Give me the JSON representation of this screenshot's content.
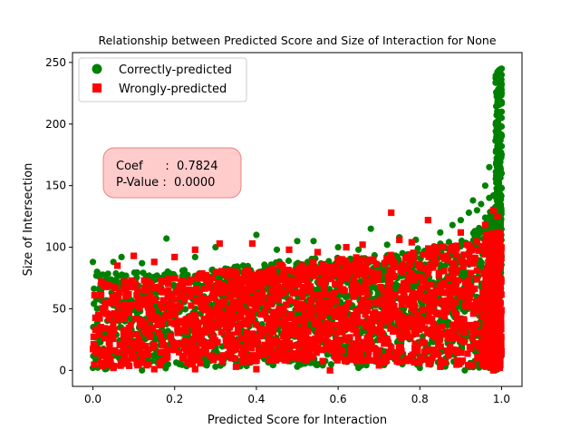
{
  "chart_data": {
    "type": "scatter",
    "title": "Relationship between Predicted Score and Size of Interaction for None",
    "xlabel": "Predicted Score for Interaction",
    "ylabel": "Size of Intersection",
    "xlim": [
      -0.05,
      1.05
    ],
    "ylim": [
      -13,
      258
    ],
    "x_ticks": [
      0.0,
      0.2,
      0.4,
      0.6,
      0.8,
      1.0
    ],
    "x_tick_labels": [
      "0.0",
      "0.2",
      "0.4",
      "0.6",
      "0.8",
      "1.0"
    ],
    "y_ticks": [
      0,
      50,
      100,
      150,
      200,
      250
    ],
    "y_tick_labels": [
      "0",
      "50",
      "100",
      "150",
      "200",
      "250"
    ],
    "grid": false,
    "legend_position": "top-left",
    "series": [
      {
        "name": "Correctly-predicted",
        "marker": "circle",
        "color": "#008000",
        "points": [
          [
            0.0,
            88
          ],
          [
            0.01,
            80
          ],
          [
            0.02,
            65
          ],
          [
            0.05,
            88
          ],
          [
            0.07,
            92
          ],
          [
            0.12,
            87
          ],
          [
            0.18,
            107
          ],
          [
            0.25,
            92
          ],
          [
            0.3,
            100
          ],
          [
            0.4,
            110
          ],
          [
            0.45,
            98
          ],
          [
            0.5,
            105
          ],
          [
            0.54,
            105
          ],
          [
            0.6,
            100
          ],
          [
            0.65,
            98
          ],
          [
            0.68,
            115
          ],
          [
            0.72,
            102
          ],
          [
            0.75,
            108
          ],
          [
            0.79,
            106
          ],
          [
            0.85,
            112
          ],
          [
            0.88,
            118
          ],
          [
            0.9,
            122
          ],
          [
            0.92,
            128
          ],
          [
            0.93,
            138
          ],
          [
            0.95,
            135
          ],
          [
            0.96,
            150
          ],
          [
            0.97,
            165
          ],
          [
            0.99,
            182
          ],
          [
            1.0,
            245
          ],
          [
            1.0,
            240
          ],
          [
            1.0,
            232
          ],
          [
            1.0,
            225
          ],
          [
            1.0,
            218
          ],
          [
            1.0,
            210
          ],
          [
            1.0,
            205
          ],
          [
            1.0,
            198
          ],
          [
            1.0,
            190
          ],
          [
            1.0,
            182
          ],
          [
            1.0,
            175
          ],
          [
            0.99,
            170
          ],
          [
            1.0,
            160
          ],
          [
            0.99,
            155
          ],
          [
            1.0,
            148
          ],
          [
            0.98,
            142
          ],
          [
            0.97,
            140
          ],
          [
            0.98,
            131
          ],
          [
            0.94,
            130
          ],
          [
            0.96,
            124
          ],
          [
            0.12,
            0
          ],
          [
            0.3,
            3
          ],
          [
            0.5,
            3
          ],
          [
            0.65,
            2
          ],
          [
            0.8,
            2
          ],
          [
            0.91,
            0
          ],
          [
            0.97,
            2
          ],
          [
            0.0,
            2
          ],
          [
            0.03,
            1
          ]
        ]
      },
      {
        "name": "Wrongly-predicted",
        "marker": "square",
        "color": "#ff0000",
        "points": [
          [
            0.73,
            128
          ],
          [
            0.82,
            122
          ],
          [
            0.98,
            130
          ],
          [
            0.99,
            125
          ],
          [
            0.96,
            118
          ],
          [
            0.9,
            112
          ],
          [
            0.78,
            104
          ],
          [
            0.75,
            106
          ],
          [
            0.66,
            102
          ],
          [
            0.62,
            100
          ],
          [
            0.55,
            96
          ],
          [
            0.48,
            98
          ],
          [
            0.39,
            103
          ],
          [
            0.31,
            103
          ],
          [
            0.25,
            98
          ],
          [
            0.2,
            92
          ],
          [
            0.15,
            88
          ],
          [
            0.1,
            93
          ],
          [
            0.06,
            85
          ],
          [
            0.02,
            72
          ],
          [
            0.98,
            0
          ],
          [
            0.93,
            4
          ],
          [
            0.85,
            3
          ],
          [
            0.7,
            4
          ],
          [
            0.58,
            0
          ],
          [
            0.4,
            1
          ],
          [
            0.35,
            3
          ],
          [
            0.25,
            1
          ],
          [
            0.15,
            1
          ],
          [
            0.05,
            2
          ],
          [
            0.02,
            6
          ]
        ]
      }
    ],
    "dense_band": {
      "note_x": [
        0.0,
        1.0
      ],
      "correct_y_by_x": [
        [
          0.0,
          0,
          78
        ],
        [
          0.25,
          2,
          82
        ],
        [
          0.5,
          4,
          90
        ],
        [
          0.75,
          3,
          96
        ],
        [
          0.92,
          2,
          108
        ],
        [
          1.0,
          0,
          140
        ]
      ],
      "wrong_y_by_x": [
        [
          0.0,
          2,
          70
        ],
        [
          0.25,
          5,
          78
        ],
        [
          0.5,
          8,
          88
        ],
        [
          0.75,
          6,
          95
        ],
        [
          0.92,
          4,
          105
        ],
        [
          1.0,
          2,
          115
        ]
      ]
    },
    "legend": {
      "entries": [
        "Correctly-predicted",
        "Wrongly-predicted"
      ]
    },
    "annotation": {
      "lines": [
        "Coef      :  0.7824",
        "P-Value :  0.0000"
      ],
      "box_color": "#ffcccc",
      "edge_color": "#f08080"
    }
  }
}
